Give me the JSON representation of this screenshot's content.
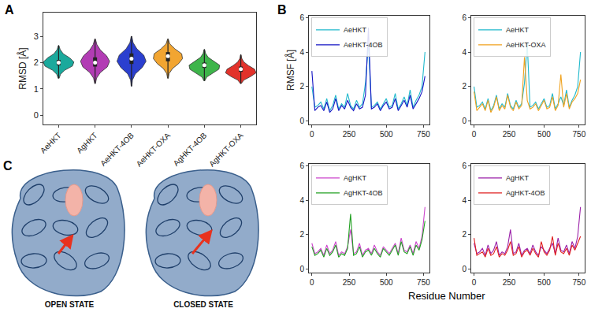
{
  "chart_data": [
    {
      "type": "violin",
      "annotations": [
        "A"
      ],
      "ylabel": "RMSD [Å]",
      "categories": [
        "AeHKT",
        "AgHKT",
        "AeHKT-4OB",
        "AeHKT-OXA",
        "AgHKT-4OB",
        "AgHKT-OXA"
      ],
      "ylim": [
        -0.35,
        3.9
      ],
      "yticks": [
        0,
        1,
        2,
        3
      ],
      "grid": false,
      "violins": [
        {
          "color": "#1ba99c",
          "min": 1.4,
          "q1": 1.9,
          "median": 2.0,
          "q3": 2.1,
          "max": 2.65,
          "density": [
            0.03,
            0.12,
            0.4,
            0.9,
            1.0,
            0.72,
            0.3,
            0.1,
            0.02
          ]
        },
        {
          "color": "#b23cb4",
          "min": 1.2,
          "q1": 1.85,
          "median": 2.0,
          "q3": 2.2,
          "max": 2.9,
          "density": [
            0.02,
            0.1,
            0.35,
            0.8,
            0.95,
            0.75,
            0.35,
            0.12,
            0.02
          ]
        },
        {
          "color": "#2b3fcf",
          "min": 1.1,
          "q1": 1.95,
          "median": 2.15,
          "q3": 2.35,
          "max": 3.0,
          "density": [
            0.02,
            0.06,
            0.25,
            0.7,
            0.95,
            0.8,
            0.35,
            0.1,
            0.02
          ]
        },
        {
          "color": "#f2a531",
          "min": 1.4,
          "q1": 2.05,
          "median": 2.25,
          "q3": 2.4,
          "max": 2.9,
          "density": [
            0.02,
            0.08,
            0.3,
            0.7,
            0.95,
            0.9,
            0.45,
            0.12,
            0.02
          ]
        },
        {
          "color": "#3db54a",
          "min": 1.3,
          "q1": 1.8,
          "median": 1.9,
          "q3": 2.0,
          "max": 2.5,
          "density": [
            0.02,
            0.15,
            0.55,
            0.95,
            1.0,
            0.6,
            0.25,
            0.08,
            0.02
          ]
        },
        {
          "color": "#e2322b",
          "min": 1.2,
          "q1": 1.65,
          "median": 1.75,
          "q3": 1.85,
          "max": 2.3,
          "density": [
            0.02,
            0.2,
            0.65,
            1.0,
            0.9,
            0.5,
            0.2,
            0.06,
            0.02
          ]
        }
      ]
    },
    {
      "type": "line",
      "annotations": [
        "B"
      ],
      "ylabel": "RMSF [Å]",
      "legend": "upper left",
      "xlim": [
        -20,
        790
      ],
      "xticks": [
        0,
        250,
        500,
        750
      ],
      "ylim": [
        -0.2,
        6.1
      ],
      "yticks": [
        0,
        2,
        4,
        6
      ],
      "x": [
        0,
        20,
        40,
        60,
        80,
        100,
        120,
        140,
        160,
        180,
        200,
        220,
        240,
        260,
        280,
        300,
        320,
        340,
        360,
        380,
        400,
        420,
        440,
        460,
        480,
        500,
        520,
        540,
        560,
        580,
        600,
        620,
        640,
        660,
        680,
        700,
        720,
        740,
        760
      ],
      "series": [
        {
          "name": "AeHKT",
          "color": "#20b9cc",
          "values": [
            2.0,
            0.8,
            0.9,
            1.1,
            0.7,
            1.3,
            0.6,
            0.9,
            1.5,
            0.7,
            1.0,
            0.8,
            1.6,
            0.9,
            0.7,
            1.2,
            0.8,
            1.0,
            2.2,
            4.5,
            0.8,
            0.9,
            1.1,
            0.7,
            1.0,
            1.3,
            0.8,
            0.9,
            1.6,
            0.7,
            1.0,
            1.4,
            0.9,
            1.8,
            0.8,
            1.2,
            1.5,
            2.0,
            4.0
          ]
        },
        {
          "name": "AeHKT-4OB",
          "color": "#1414c4",
          "values": [
            2.9,
            0.6,
            0.8,
            0.9,
            0.6,
            1.1,
            0.5,
            0.7,
            1.3,
            0.6,
            0.9,
            0.7,
            1.2,
            0.8,
            0.6,
            1.0,
            0.7,
            0.8,
            1.5,
            5.4,
            0.7,
            0.8,
            1.0,
            0.6,
            0.9,
            1.1,
            0.7,
            0.8,
            1.3,
            0.6,
            0.9,
            1.2,
            0.8,
            1.5,
            0.7,
            1.0,
            1.3,
            1.7,
            2.6
          ]
        }
      ]
    },
    {
      "type": "line",
      "legend": "upper left",
      "xlim": [
        -20,
        790
      ],
      "xticks": [
        0,
        250,
        500,
        750
      ],
      "ylim": [
        -0.2,
        6.1
      ],
      "yticks": [
        0,
        2,
        4,
        6
      ],
      "x": [
        0,
        20,
        40,
        60,
        80,
        100,
        120,
        140,
        160,
        180,
        200,
        220,
        240,
        260,
        280,
        300,
        320,
        340,
        360,
        380,
        400,
        420,
        440,
        460,
        480,
        500,
        520,
        540,
        560,
        580,
        600,
        620,
        640,
        660,
        680,
        700,
        720,
        740,
        760
      ],
      "series": [
        {
          "name": "AeHKT",
          "color": "#20b9cc",
          "values": [
            2.0,
            0.8,
            0.9,
            1.1,
            0.7,
            1.3,
            0.6,
            0.9,
            1.5,
            0.7,
            1.0,
            0.8,
            1.6,
            0.9,
            0.7,
            1.2,
            0.8,
            1.0,
            2.2,
            4.5,
            0.8,
            0.9,
            1.1,
            0.7,
            1.0,
            1.3,
            0.8,
            0.9,
            1.6,
            0.7,
            1.0,
            1.4,
            0.9,
            1.8,
            0.8,
            1.2,
            1.5,
            2.0,
            4.0
          ]
        },
        {
          "name": "AeHKT-OXA",
          "color": "#f0a21e",
          "values": [
            1.7,
            0.6,
            0.8,
            1.0,
            0.6,
            1.2,
            0.5,
            0.8,
            1.4,
            0.6,
            0.9,
            0.7,
            1.5,
            0.8,
            0.6,
            1.1,
            0.7,
            0.9,
            3.7,
            1.2,
            0.7,
            0.8,
            1.0,
            0.6,
            0.9,
            1.2,
            0.7,
            0.8,
            1.4,
            0.6,
            0.9,
            2.7,
            0.8,
            1.6,
            0.7,
            1.1,
            1.3,
            1.6,
            2.4
          ]
        }
      ]
    },
    {
      "type": "line",
      "legend": "upper left",
      "xlabel": "Residue Number",
      "xlim": [
        -20,
        790
      ],
      "xticks": [
        0,
        250,
        500,
        750
      ],
      "ylim": [
        -0.2,
        6.1
      ],
      "yticks": [
        0,
        2,
        4,
        6
      ],
      "x": [
        0,
        20,
        40,
        60,
        80,
        100,
        120,
        140,
        160,
        180,
        200,
        220,
        240,
        260,
        280,
        300,
        320,
        340,
        360,
        380,
        400,
        420,
        440,
        460,
        480,
        500,
        520,
        540,
        560,
        580,
        600,
        620,
        640,
        660,
        680,
        700,
        720,
        740,
        760
      ],
      "series": [
        {
          "name": "AgHKT",
          "color": "#cc44cc",
          "values": [
            1.5,
            0.9,
            1.0,
            1.2,
            0.8,
            1.4,
            0.9,
            1.1,
            1.6,
            0.8,
            1.0,
            0.9,
            1.3,
            2.3,
            0.9,
            1.0,
            1.5,
            0.8,
            1.1,
            1.2,
            0.9,
            1.4,
            1.0,
            0.8,
            1.3,
            1.1,
            0.9,
            1.2,
            1.5,
            0.9,
            1.8,
            1.1,
            1.0,
            1.4,
            0.9,
            1.6,
            1.2,
            1.9,
            3.6
          ]
        },
        {
          "name": "AgHKT-4OB",
          "color": "#22a022",
          "values": [
            1.3,
            0.8,
            0.9,
            1.1,
            0.7,
            1.2,
            0.8,
            1.0,
            1.4,
            0.7,
            0.9,
            0.8,
            1.2,
            3.2,
            0.8,
            0.9,
            1.3,
            0.7,
            1.0,
            1.1,
            0.8,
            1.2,
            0.9,
            0.7,
            1.2,
            1.0,
            0.8,
            1.1,
            1.4,
            0.8,
            1.6,
            1.0,
            0.9,
            1.3,
            0.8,
            1.4,
            1.1,
            1.7,
            2.8
          ]
        }
      ]
    },
    {
      "type": "line",
      "legend": "upper left",
      "xlim": [
        -20,
        790
      ],
      "xticks": [
        0,
        250,
        500,
        750
      ],
      "ylim": [
        -0.2,
        6.1
      ],
      "yticks": [
        0,
        2,
        4,
        6
      ],
      "x": [
        0,
        20,
        40,
        60,
        80,
        100,
        120,
        140,
        160,
        180,
        200,
        220,
        240,
        260,
        280,
        300,
        320,
        340,
        360,
        380,
        400,
        420,
        440,
        460,
        480,
        500,
        520,
        540,
        560,
        580,
        600,
        620,
        640,
        660,
        680,
        700,
        720,
        740,
        760
      ],
      "series": [
        {
          "name": "AgHKT",
          "color": "#9a1fa8",
          "values": [
            1.5,
            0.9,
            1.0,
            1.2,
            0.8,
            1.4,
            0.9,
            1.1,
            1.6,
            0.8,
            1.0,
            0.9,
            1.3,
            2.3,
            0.9,
            1.0,
            1.5,
            0.8,
            1.1,
            1.2,
            0.9,
            1.4,
            1.0,
            0.8,
            1.3,
            1.1,
            0.9,
            1.2,
            1.5,
            0.9,
            1.8,
            1.1,
            1.0,
            1.4,
            0.9,
            1.6,
            1.2,
            1.9,
            3.6
          ]
        },
        {
          "name": "AgHKT-4OB",
          "color": "#e02020",
          "values": [
            1.8,
            0.8,
            0.9,
            1.0,
            0.7,
            1.2,
            0.8,
            0.9,
            1.3,
            0.7,
            0.9,
            0.8,
            1.1,
            1.6,
            0.8,
            0.9,
            1.3,
            0.7,
            1.0,
            1.1,
            0.8,
            1.2,
            0.9,
            0.7,
            1.6,
            1.0,
            0.8,
            1.1,
            1.9,
            0.8,
            1.5,
            1.0,
            0.9,
            1.2,
            0.8,
            1.4,
            1.1,
            1.5,
            1.9
          ]
        }
      ]
    }
  ],
  "panel_c": {
    "label": "C",
    "captions": [
      "OPEN STATE",
      "CLOSED STATE"
    ]
  }
}
